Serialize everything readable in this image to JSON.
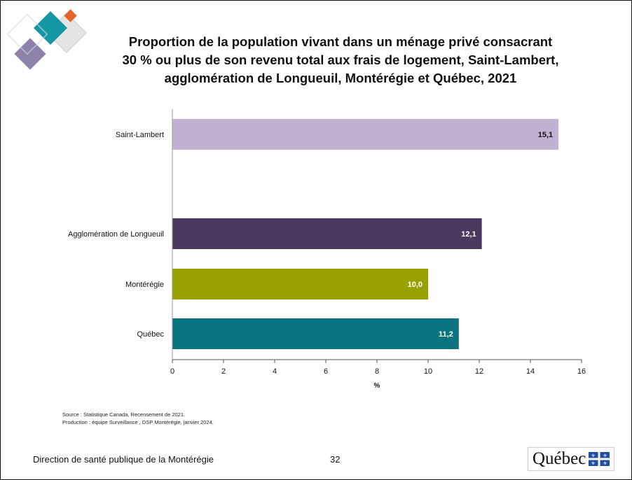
{
  "title_lines": [
    "Proportion de la population vivant dans un ménage privé consacrant",
    "30 % ou plus de son revenu total aux frais de logement, Saint-Lambert,",
    "agglomération de Longueuil, Montérégie et Québec, 2021"
  ],
  "source": {
    "line1": "Source : Statistique Canada, Recensement de 2021.",
    "line2": "Production : équipe Surveillance , DSP Montérégie, janvier 2024."
  },
  "footer": {
    "organization": "Direction de santé publique de la Montérégie",
    "page_number": "32",
    "logo_text": "Québec"
  },
  "chart_data": {
    "type": "bar",
    "orientation": "horizontal",
    "categories": [
      "Saint-Lambert",
      "Agglomération de Longueuil",
      "Montérégie",
      "Québec"
    ],
    "values": [
      15.1,
      12.1,
      10.0,
      11.2
    ],
    "value_labels": [
      "15,1",
      "12,1",
      "10,0",
      "11,2"
    ],
    "colors": [
      "#c2b2d2",
      "#4a3a60",
      "#99a100",
      "#0b7480"
    ],
    "label_colors": [
      "#111111",
      "#ffffff",
      "#ffffff",
      "#ffffff"
    ],
    "xlabel": "%",
    "xlim": [
      0,
      16
    ],
    "xticks": [
      0,
      2,
      4,
      6,
      8,
      10,
      12,
      14,
      16
    ],
    "grid": false
  }
}
